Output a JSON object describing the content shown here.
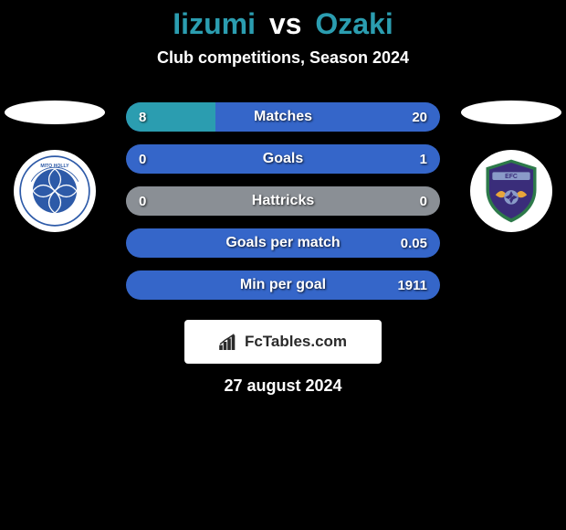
{
  "title": {
    "player1": "Iizumi",
    "vs": "vs",
    "player2": "Ozaki"
  },
  "subtitle": "Club competitions, Season 2024",
  "colors": {
    "bar_left": "#2b9db0",
    "bar_right": "#3566c9",
    "bar_neutral": "#8a8f95",
    "background": "#000000",
    "text": "#ffffff"
  },
  "stats": [
    {
      "label": "Matches",
      "left_val": "8",
      "right_val": "20",
      "left_pct": 28.6,
      "right_pct": 71.4,
      "neutral": false
    },
    {
      "label": "Goals",
      "left_val": "0",
      "right_val": "1",
      "left_pct": 0,
      "right_pct": 100,
      "neutral": false
    },
    {
      "label": "Hattricks",
      "left_val": "0",
      "right_val": "0",
      "left_pct": 50,
      "right_pct": 50,
      "neutral": true
    },
    {
      "label": "Goals per match",
      "left_val": "",
      "right_val": "0.05",
      "left_pct": 0,
      "right_pct": 100,
      "neutral": false
    },
    {
      "label": "Min per goal",
      "left_val": "",
      "right_val": "1911",
      "left_pct": 0,
      "right_pct": 100,
      "neutral": false
    }
  ],
  "brand": {
    "text": "FcTables.com"
  },
  "date": "27 august 2024",
  "clubs": {
    "left": {
      "name": "FC Mito HollyHock",
      "primary": "#2d5aa8",
      "secondary": "#ffffff"
    },
    "right": {
      "name": "Ehime FC",
      "primary": "#3a2d7a",
      "secondary": "#e8a63a",
      "accent": "#2d7a4a"
    }
  }
}
